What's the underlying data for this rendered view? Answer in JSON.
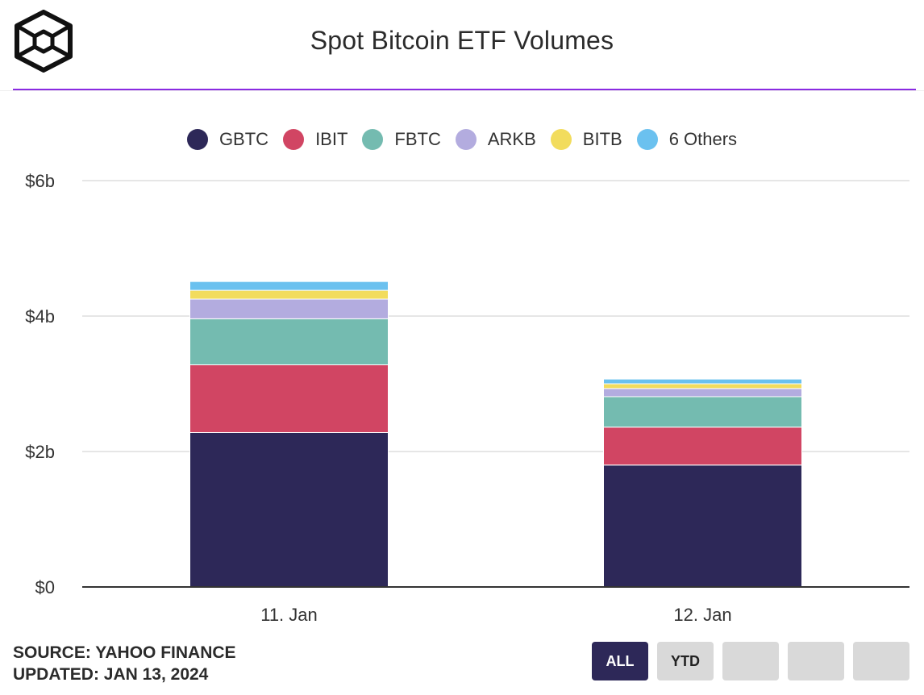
{
  "header": {
    "title": "Spot Bitcoin ETF Volumes"
  },
  "colors": {
    "accent": "#8a2be2"
  },
  "chart_data": {
    "type": "bar",
    "stacked": true,
    "categories": [
      "11. Jan",
      "12. Jan"
    ],
    "series": [
      {
        "name": "GBTC",
        "color": "#2d2858",
        "values": [
          2.28,
          1.8
        ]
      },
      {
        "name": "IBIT",
        "color": "#d14563",
        "values": [
          1.0,
          0.56
        ]
      },
      {
        "name": "FBTC",
        "color": "#74bbb0",
        "values": [
          0.68,
          0.45
        ]
      },
      {
        "name": "ARKB",
        "color": "#b3acdf",
        "values": [
          0.29,
          0.12
        ]
      },
      {
        "name": "BITB",
        "color": "#f2dc5d",
        "values": [
          0.13,
          0.07
        ]
      },
      {
        "name": "6 Others",
        "color": "#6bc1ef",
        "values": [
          0.13,
          0.07
        ]
      }
    ],
    "ylim": [
      0,
      6
    ],
    "yticks": [
      0,
      2,
      4,
      6
    ],
    "ytick_labels": [
      "$0",
      "$2b",
      "$4b",
      "$6b"
    ],
    "grid": true,
    "legend_position": "top-center"
  },
  "footer": {
    "source": "SOURCE: YAHOO FINANCE",
    "updated": "UPDATED: JAN 13, 2024"
  },
  "buttons": [
    {
      "label": "ALL",
      "active": true
    },
    {
      "label": "YTD",
      "active": false
    },
    {
      "label": "",
      "active": false
    },
    {
      "label": "",
      "active": false
    },
    {
      "label": "",
      "active": false
    }
  ]
}
